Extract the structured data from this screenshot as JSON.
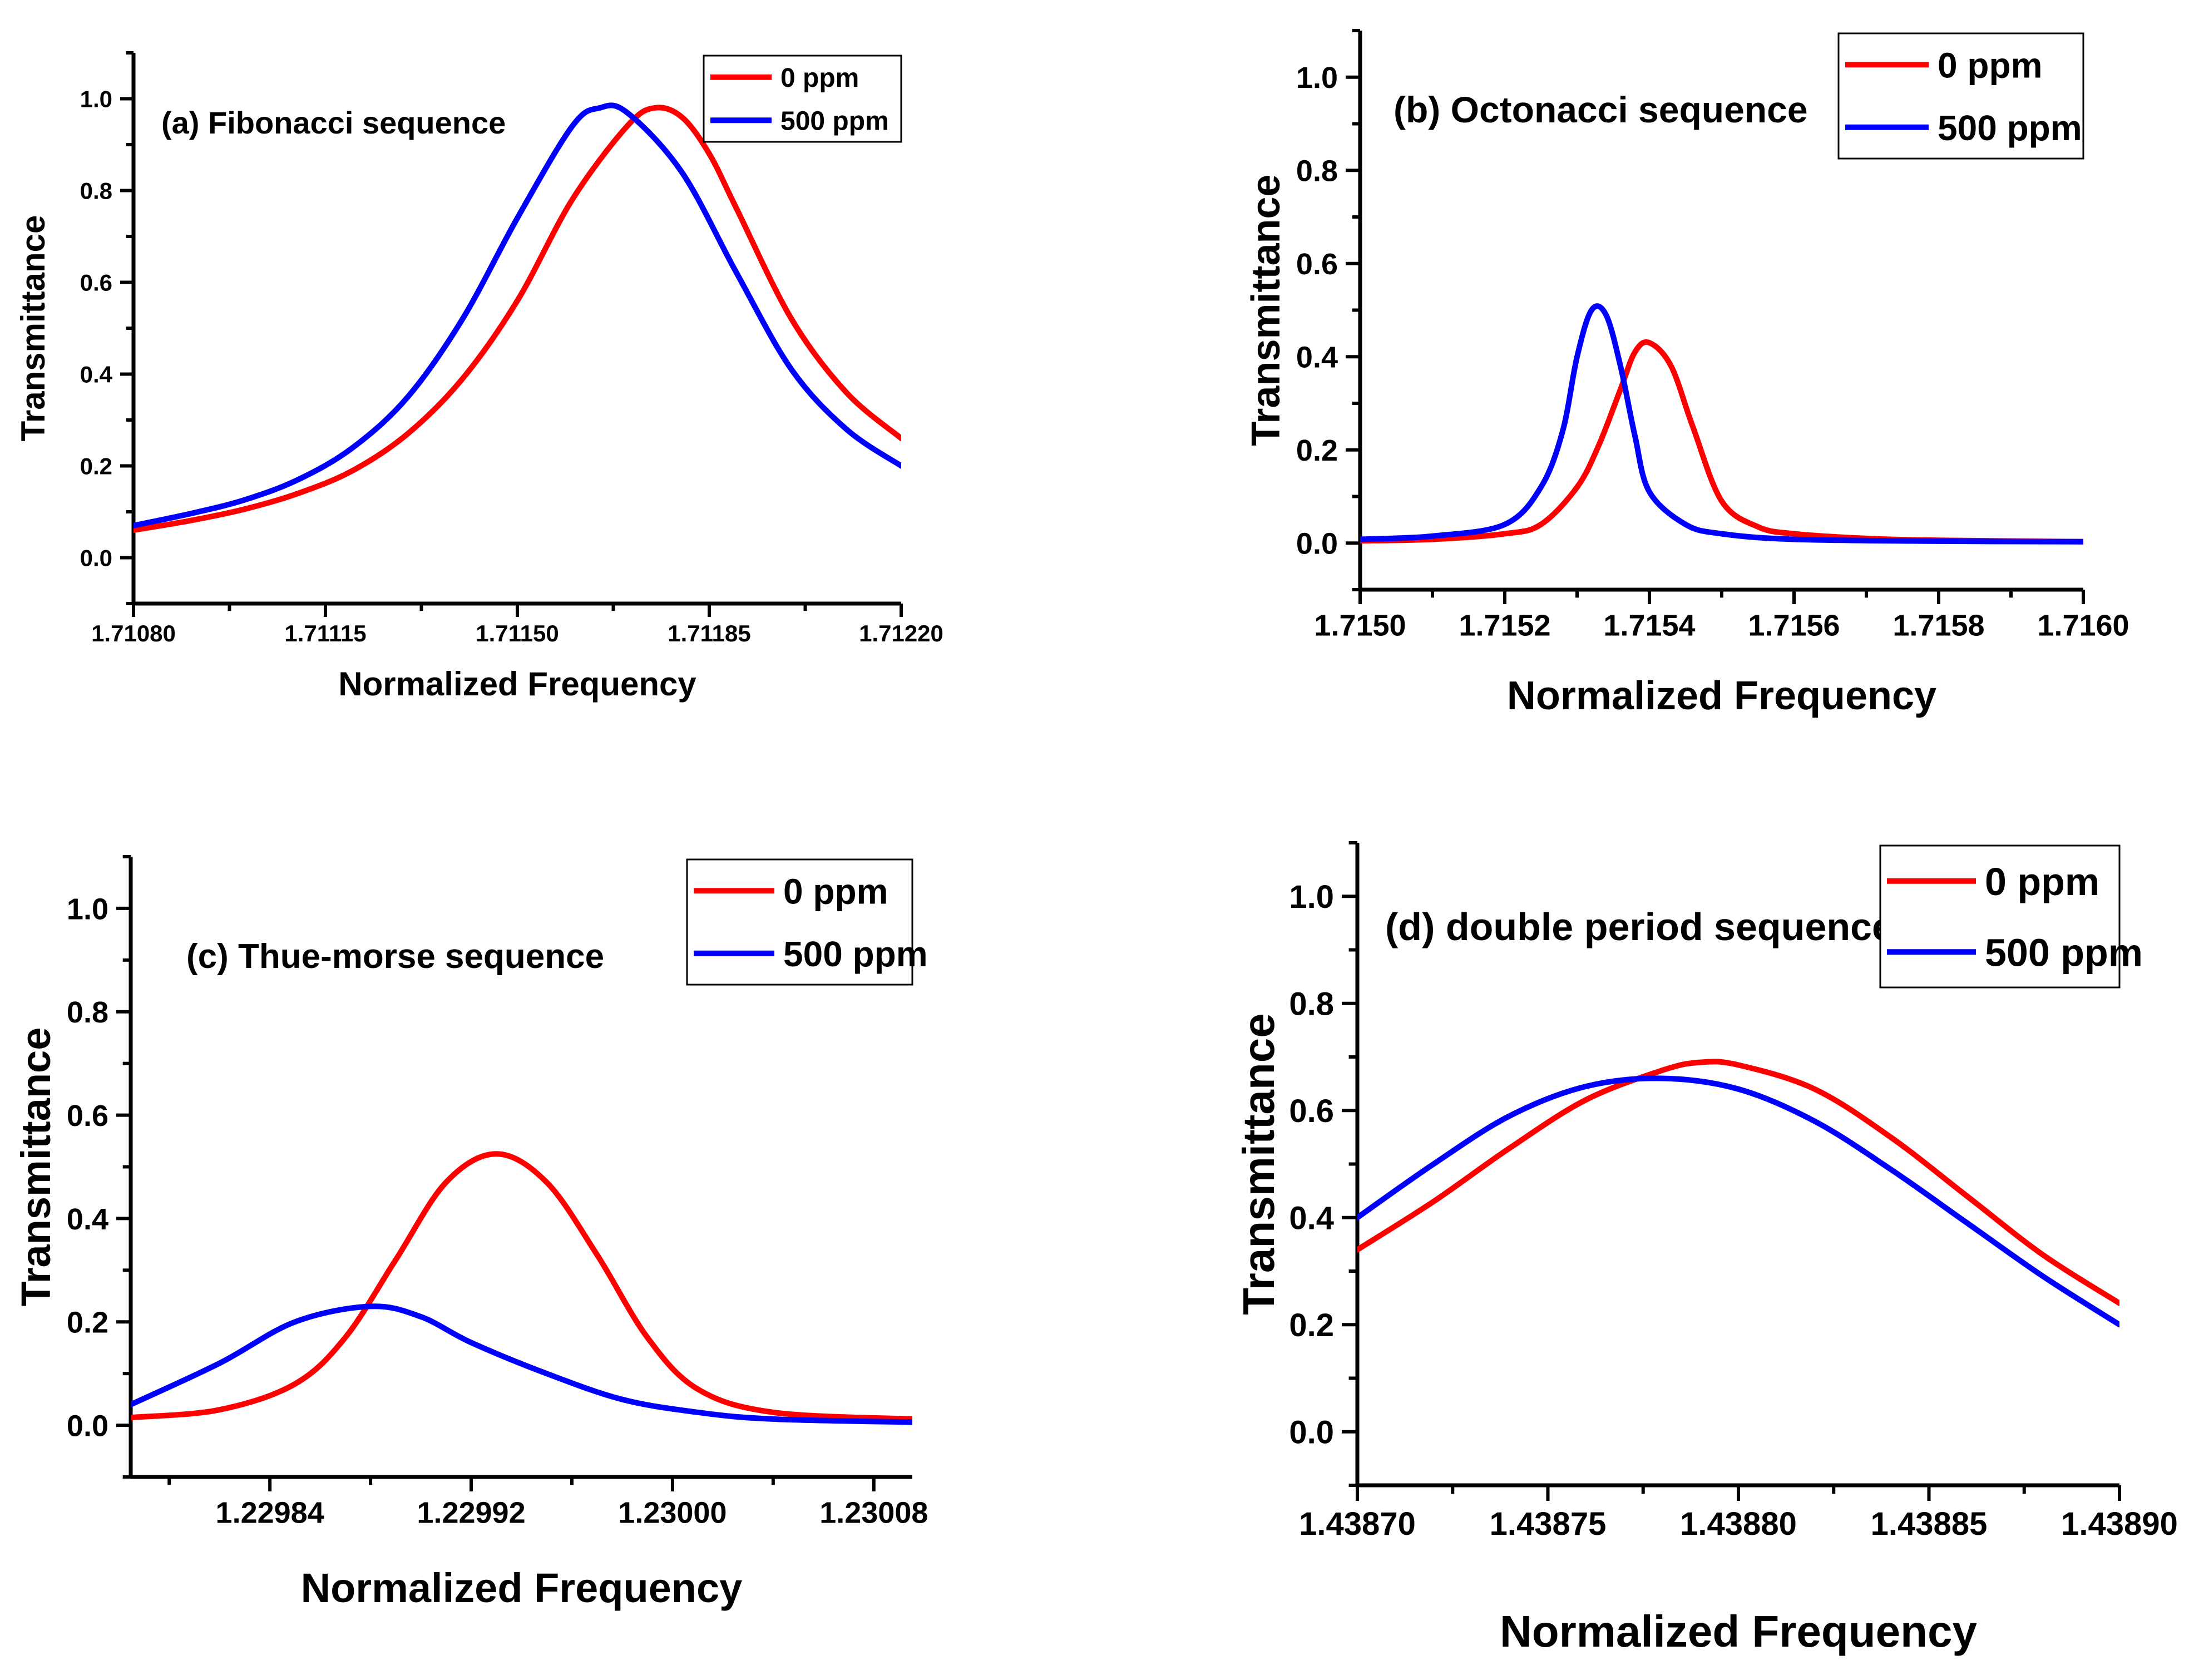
{
  "chart_data": [
    {
      "type": "line",
      "panel": "a",
      "annotation": "(a) Fibonacci sequence",
      "xlabel": "Normalized Frequency",
      "ylabel": "Transmittance",
      "xlim": [
        1.7108,
        1.7122
      ],
      "ylim": [
        -0.1,
        1.1
      ],
      "xticks": [
        1.7108,
        1.71115,
        1.7115,
        1.71185,
        1.7122
      ],
      "xtick_labels": [
        "1.71080",
        "1.71115",
        "1.71150",
        "1.71185",
        "1.71220"
      ],
      "xminor": true,
      "yticks": [
        0,
        0.2,
        0.4,
        0.6,
        0.8,
        1.0
      ],
      "ytick_labels": [
        "0.0",
        "0.2",
        "0.4",
        "0.6",
        "0.8",
        "1.0"
      ],
      "legend_position": "top-right",
      "series": [
        {
          "name": "0 ppm",
          "color": "#ff0000",
          "x": [
            1.7108,
            1.7109,
            1.711,
            1.7111,
            1.7112,
            1.7113,
            1.7114,
            1.7115,
            1.7116,
            1.7117,
            1.71175,
            1.7118,
            1.71185,
            1.7119,
            1.712,
            1.7121,
            1.7122
          ],
          "y": [
            0.06,
            0.08,
            0.105,
            0.14,
            0.19,
            0.27,
            0.39,
            0.56,
            0.78,
            0.94,
            0.98,
            0.96,
            0.88,
            0.76,
            0.52,
            0.36,
            0.26
          ]
        },
        {
          "name": "500 ppm",
          "color": "#0000ff",
          "x": [
            1.7108,
            1.7109,
            1.711,
            1.7111,
            1.7112,
            1.7113,
            1.7114,
            1.7115,
            1.7116,
            1.71165,
            1.7117,
            1.7118,
            1.7119,
            1.712,
            1.7121,
            1.7122
          ],
          "y": [
            0.07,
            0.095,
            0.125,
            0.17,
            0.24,
            0.35,
            0.52,
            0.74,
            0.94,
            0.98,
            0.97,
            0.84,
            0.62,
            0.41,
            0.28,
            0.2
          ]
        }
      ]
    },
    {
      "type": "line",
      "panel": "b",
      "annotation": "(b) Octonacci sequence",
      "xlabel": "Normalized Frequency",
      "ylabel": "Transmittance",
      "xlim": [
        1.715,
        1.716
      ],
      "ylim": [
        -0.1,
        1.1
      ],
      "xticks": [
        1.715,
        1.7152,
        1.7154,
        1.7156,
        1.7158,
        1.716
      ],
      "xtick_labels": [
        "1.7150",
        "1.7152",
        "1.7154",
        "1.7156",
        "1.7158",
        "1.7160"
      ],
      "xminor": true,
      "yticks": [
        0,
        0.2,
        0.4,
        0.6,
        0.8,
        1.0
      ],
      "ytick_labels": [
        "0.0",
        "0.2",
        "0.4",
        "0.6",
        "0.8",
        "1.0"
      ],
      "legend_position": "top-right",
      "series": [
        {
          "name": "0 ppm",
          "color": "#ff0000",
          "x": [
            1.715,
            1.7151,
            1.7152,
            1.71525,
            1.7153,
            1.71533,
            1.71536,
            1.71538,
            1.7154,
            1.71543,
            1.71546,
            1.7155,
            1.71555,
            1.7156,
            1.7157,
            1.7158,
            1.716
          ],
          "y": [
            0.005,
            0.008,
            0.02,
            0.04,
            0.12,
            0.21,
            0.33,
            0.41,
            0.43,
            0.38,
            0.25,
            0.09,
            0.035,
            0.02,
            0.01,
            0.006,
            0.003
          ]
        },
        {
          "name": "500 ppm",
          "color": "#0000ff",
          "x": [
            1.715,
            1.7151,
            1.7152,
            1.71525,
            1.71528,
            1.7153,
            1.71532,
            1.71534,
            1.71536,
            1.71538,
            1.7154,
            1.71545,
            1.7155,
            1.7156,
            1.7158,
            1.716
          ],
          "y": [
            0.008,
            0.015,
            0.04,
            0.12,
            0.24,
            0.4,
            0.5,
            0.49,
            0.38,
            0.23,
            0.11,
            0.04,
            0.02,
            0.008,
            0.004,
            0.003
          ]
        }
      ]
    },
    {
      "type": "line",
      "panel": "c",
      "annotation": "(c) Thue-morse sequence",
      "xlabel": "Normalized Frequency",
      "ylabel": "Transmittance",
      "xlim": [
        1.2297847,
        1.2300953
      ],
      "ylim": [
        -0.1,
        1.1
      ],
      "xticks": [
        1.22984,
        1.22992,
        1.23,
        1.23008
      ],
      "xtick_labels": [
        "1.22984",
        "1.22992",
        "1.23000",
        "1.23008"
      ],
      "xminor": true,
      "yticks": [
        0,
        0.2,
        0.4,
        0.6,
        0.8,
        1.0
      ],
      "ytick_labels": [
        "0.0",
        "0.2",
        "0.4",
        "0.6",
        "0.8",
        "1.0"
      ],
      "legend_position": "top-right",
      "series": [
        {
          "name": "0 ppm",
          "color": "#ff0000",
          "x": [
            1.2297847,
            1.22982,
            1.22985,
            1.22987,
            1.22989,
            1.22991,
            1.22993,
            1.22995,
            1.22997,
            1.22999,
            1.23001,
            1.23004,
            1.2300953
          ],
          "y": [
            0.015,
            0.03,
            0.08,
            0.17,
            0.32,
            0.47,
            0.525,
            0.47,
            0.33,
            0.17,
            0.07,
            0.025,
            0.012
          ]
        },
        {
          "name": "500 ppm",
          "color": "#0000ff",
          "x": [
            1.2297847,
            1.22982,
            1.22985,
            1.22988,
            1.2299,
            1.22992,
            1.22995,
            1.22998,
            1.23001,
            1.23004,
            1.2300953
          ],
          "y": [
            0.04,
            0.12,
            0.2,
            0.23,
            0.21,
            0.16,
            0.1,
            0.05,
            0.025,
            0.012,
            0.006
          ]
        }
      ]
    },
    {
      "type": "line",
      "panel": "d",
      "annotation": "(d) double period sequence",
      "xlabel": "Normalized Frequency",
      "ylabel": "Transmittance",
      "xlim": [
        1.4387,
        1.4389
      ],
      "ylim": [
        -0.1,
        1.1
      ],
      "xticks": [
        1.4387,
        1.43875,
        1.4388,
        1.43885,
        1.4389
      ],
      "xtick_labels": [
        "1.43870",
        "1.43875",
        "1.43880",
        "1.43885",
        "1.43890"
      ],
      "xminor": true,
      "yticks": [
        0,
        0.2,
        0.4,
        0.6,
        0.8,
        1.0
      ],
      "ytick_labels": [
        "0.0",
        "0.2",
        "0.4",
        "0.6",
        "0.8",
        "1.0"
      ],
      "legend_position": "top-right",
      "series": [
        {
          "name": "0 ppm",
          "color": "#ff0000",
          "x": [
            1.4387,
            1.43872,
            1.43874,
            1.43876,
            1.43878,
            1.43879,
            1.4388,
            1.43882,
            1.43884,
            1.43886,
            1.43888,
            1.4389
          ],
          "y": [
            0.34,
            0.43,
            0.53,
            0.62,
            0.675,
            0.69,
            0.685,
            0.64,
            0.55,
            0.44,
            0.33,
            0.24
          ]
        },
        {
          "name": "500 ppm",
          "color": "#0000ff",
          "x": [
            1.4387,
            1.43872,
            1.43874,
            1.43876,
            1.43878,
            1.4388,
            1.43882,
            1.43884,
            1.43886,
            1.43888,
            1.4389
          ],
          "y": [
            0.4,
            0.5,
            0.59,
            0.645,
            0.66,
            0.64,
            0.58,
            0.49,
            0.39,
            0.29,
            0.2
          ]
        }
      ]
    }
  ]
}
